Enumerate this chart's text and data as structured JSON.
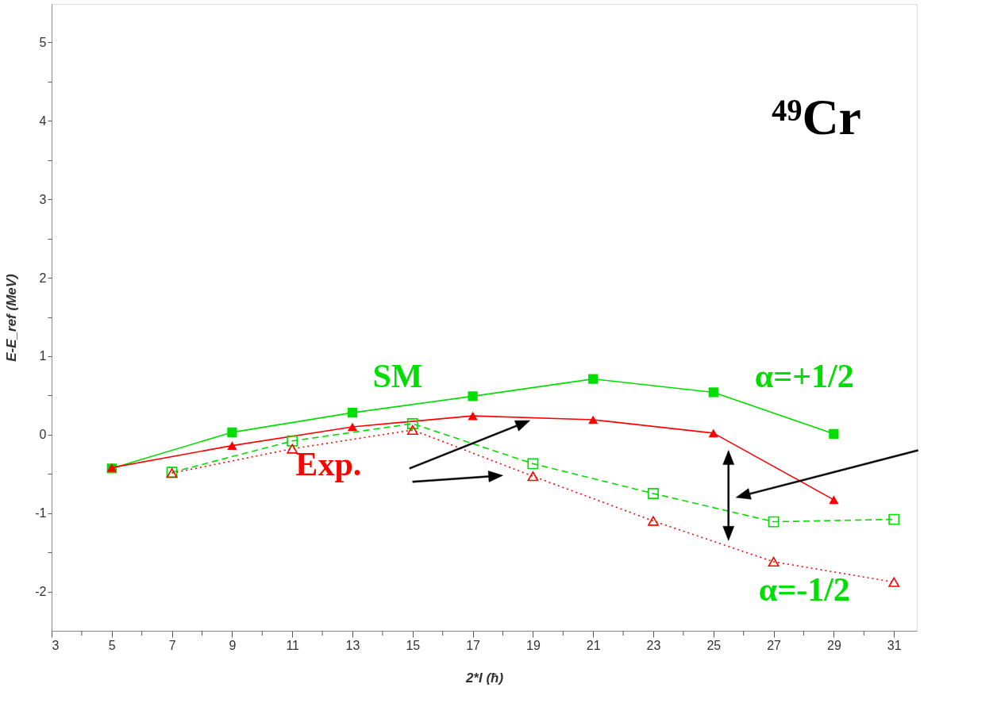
{
  "chart_data": {
    "type": "line",
    "title": "⁴⁹Cr",
    "xlabel": "2*I (ħ)",
    "ylabel": "E-E_ref (MeV)",
    "xlim": [
      3,
      31.76
    ],
    "ylim": [
      -2.5,
      5.49
    ],
    "xticks": [
      3,
      {
        "value": 4,
        "label": null
      },
      5,
      {
        "value": 6,
        "label": null
      },
      7,
      {
        "value": 8,
        "label": null
      },
      9,
      {
        "value": 10,
        "label": null
      },
      11,
      {
        "value": 12,
        "label": null
      },
      13,
      {
        "value": 14,
        "label": null
      },
      15,
      {
        "value": 16,
        "label": null
      },
      17,
      {
        "value": 18,
        "label": null
      },
      19,
      {
        "value": 20,
        "label": null
      },
      21,
      {
        "value": 22,
        "label": null
      },
      23,
      {
        "value": 24,
        "label": null
      },
      25,
      {
        "value": 26,
        "label": null
      },
      27,
      {
        "value": 28,
        "label": null
      },
      29,
      {
        "value": 30,
        "label": null
      },
      31
    ],
    "yticks": [
      -2,
      {
        "value": -1.5,
        "label": null
      },
      -1,
      {
        "value": -0.5,
        "label": null
      },
      0,
      {
        "value": 0.5,
        "label": null
      },
      1,
      {
        "value": 1.5,
        "label": null
      },
      2,
      {
        "value": 2.5,
        "label": null
      },
      3,
      {
        "value": 3.5,
        "label": null
      },
      4,
      {
        "value": 4.5,
        "label": null
      },
      5
    ],
    "grid": false,
    "legend": false,
    "series": [
      {
        "color": "#00dd00",
        "marker": "square",
        "line_style": "solid",
        "x": [
          5,
          9,
          13,
          17,
          21,
          25,
          29
        ],
        "values": [
          -0.43,
          0.03,
          0.28,
          0.49,
          0.71,
          0.54,
          0.01
        ]
      },
      {
        "color": "#ff0000",
        "marker": "triangle",
        "line_style": "solid",
        "x": [
          5,
          9,
          13,
          17,
          21,
          25,
          29
        ],
        "values": [
          -0.42,
          -0.14,
          0.1,
          0.24,
          0.19,
          0.02,
          -0.83
        ]
      },
      {
        "color": "#00dd00",
        "marker": "square",
        "line_style": "dashed",
        "x": [
          7,
          11,
          15,
          19,
          23,
          27,
          31
        ],
        "values": [
          -0.48,
          -0.08,
          0.14,
          -0.37,
          -0.75,
          -1.11,
          -1.08
        ]
      },
      {
        "color": "#ff0000",
        "marker": "triangle",
        "line_style": "dotted",
        "x": [
          7,
          11,
          15,
          19,
          23,
          27,
          31
        ],
        "values": [
          -0.49,
          -0.18,
          0.06,
          -0.53,
          -1.1,
          -1.62,
          -1.88
        ]
      }
    ],
    "annotations": [
      "SM",
      "Exp.",
      "α=+1/2",
      "α=-1/2"
    ]
  }
}
